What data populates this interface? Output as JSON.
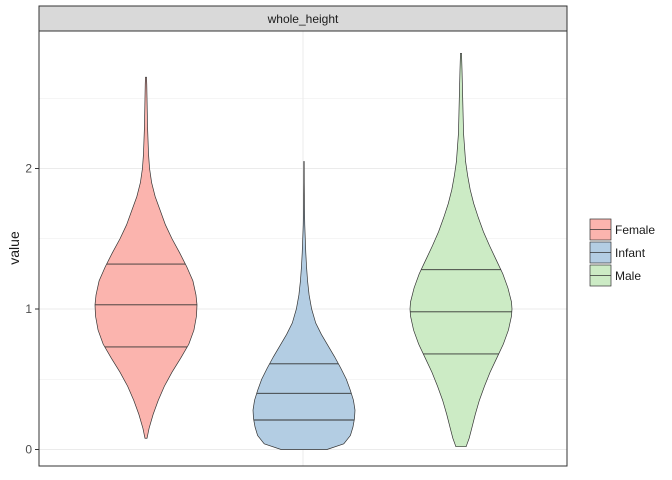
{
  "chart_data": {
    "type": "violin",
    "facet": "whole_height",
    "xlabel": "",
    "ylabel": "value",
    "y_ticks": [
      0,
      1,
      2
    ],
    "ylim": [
      -0.07,
      2.9
    ],
    "grid": true,
    "legend_position": "right",
    "series": [
      {
        "name": "Female",
        "color": "#fbb4ae",
        "min": 0.08,
        "max": 2.65,
        "quantiles": [
          0.73,
          1.03,
          1.32
        ],
        "density": [
          [
            0.08,
            0.02
          ],
          [
            0.15,
            0.06
          ],
          [
            0.25,
            0.14
          ],
          [
            0.35,
            0.24
          ],
          [
            0.45,
            0.36
          ],
          [
            0.55,
            0.51
          ],
          [
            0.65,
            0.68
          ],
          [
            0.75,
            0.84
          ],
          [
            0.85,
            0.94
          ],
          [
            0.95,
            0.99
          ],
          [
            1.03,
            1.0
          ],
          [
            1.1,
            0.98
          ],
          [
            1.2,
            0.92
          ],
          [
            1.3,
            0.8
          ],
          [
            1.4,
            0.66
          ],
          [
            1.5,
            0.51
          ],
          [
            1.6,
            0.38
          ],
          [
            1.7,
            0.28
          ],
          [
            1.8,
            0.18
          ],
          [
            1.9,
            0.11
          ],
          [
            2.0,
            0.07
          ],
          [
            2.1,
            0.05
          ],
          [
            2.2,
            0.04
          ],
          [
            2.3,
            0.03
          ],
          [
            2.4,
            0.025
          ],
          [
            2.5,
            0.02
          ],
          [
            2.6,
            0.015
          ],
          [
            2.65,
            0.01
          ]
        ]
      },
      {
        "name": "Infant",
        "color": "#b3cde3",
        "min": 0.0,
        "max": 2.05,
        "quantiles": [
          0.21,
          0.4,
          0.61
        ],
        "density": [
          [
            0.0,
            0.45
          ],
          [
            0.04,
            0.78
          ],
          [
            0.1,
            0.91
          ],
          [
            0.16,
            0.96
          ],
          [
            0.22,
            0.99
          ],
          [
            0.28,
            1.0
          ],
          [
            0.35,
            0.97
          ],
          [
            0.42,
            0.91
          ],
          [
            0.5,
            0.83
          ],
          [
            0.58,
            0.72
          ],
          [
            0.66,
            0.6
          ],
          [
            0.74,
            0.47
          ],
          [
            0.82,
            0.34
          ],
          [
            0.9,
            0.23
          ],
          [
            1.0,
            0.15
          ],
          [
            1.1,
            0.1
          ],
          [
            1.2,
            0.07
          ],
          [
            1.3,
            0.05
          ],
          [
            1.4,
            0.035
          ],
          [
            1.5,
            0.025
          ],
          [
            1.6,
            0.015
          ],
          [
            1.7,
            0.01
          ],
          [
            1.8,
            0.007
          ],
          [
            1.9,
            0.005
          ],
          [
            2.05,
            0.004
          ]
        ]
      },
      {
        "name": "Male",
        "color": "#ccebc5",
        "min": 0.02,
        "max": 2.82,
        "quantiles": [
          0.68,
          0.98,
          1.28
        ],
        "density": [
          [
            0.02,
            0.1
          ],
          [
            0.08,
            0.16
          ],
          [
            0.15,
            0.21
          ],
          [
            0.25,
            0.28
          ],
          [
            0.35,
            0.36
          ],
          [
            0.45,
            0.46
          ],
          [
            0.55,
            0.57
          ],
          [
            0.65,
            0.7
          ],
          [
            0.75,
            0.83
          ],
          [
            0.85,
            0.93
          ],
          [
            0.95,
            0.99
          ],
          [
            1.0,
            1.0
          ],
          [
            1.05,
            0.99
          ],
          [
            1.15,
            0.92
          ],
          [
            1.25,
            0.82
          ],
          [
            1.35,
            0.69
          ],
          [
            1.45,
            0.56
          ],
          [
            1.55,
            0.44
          ],
          [
            1.65,
            0.34
          ],
          [
            1.75,
            0.25
          ],
          [
            1.85,
            0.18
          ],
          [
            1.95,
            0.13
          ],
          [
            2.05,
            0.09
          ],
          [
            2.15,
            0.07
          ],
          [
            2.25,
            0.05
          ],
          [
            2.4,
            0.04
          ],
          [
            2.55,
            0.03
          ],
          [
            2.7,
            0.02
          ],
          [
            2.82,
            0.01
          ]
        ]
      }
    ]
  }
}
